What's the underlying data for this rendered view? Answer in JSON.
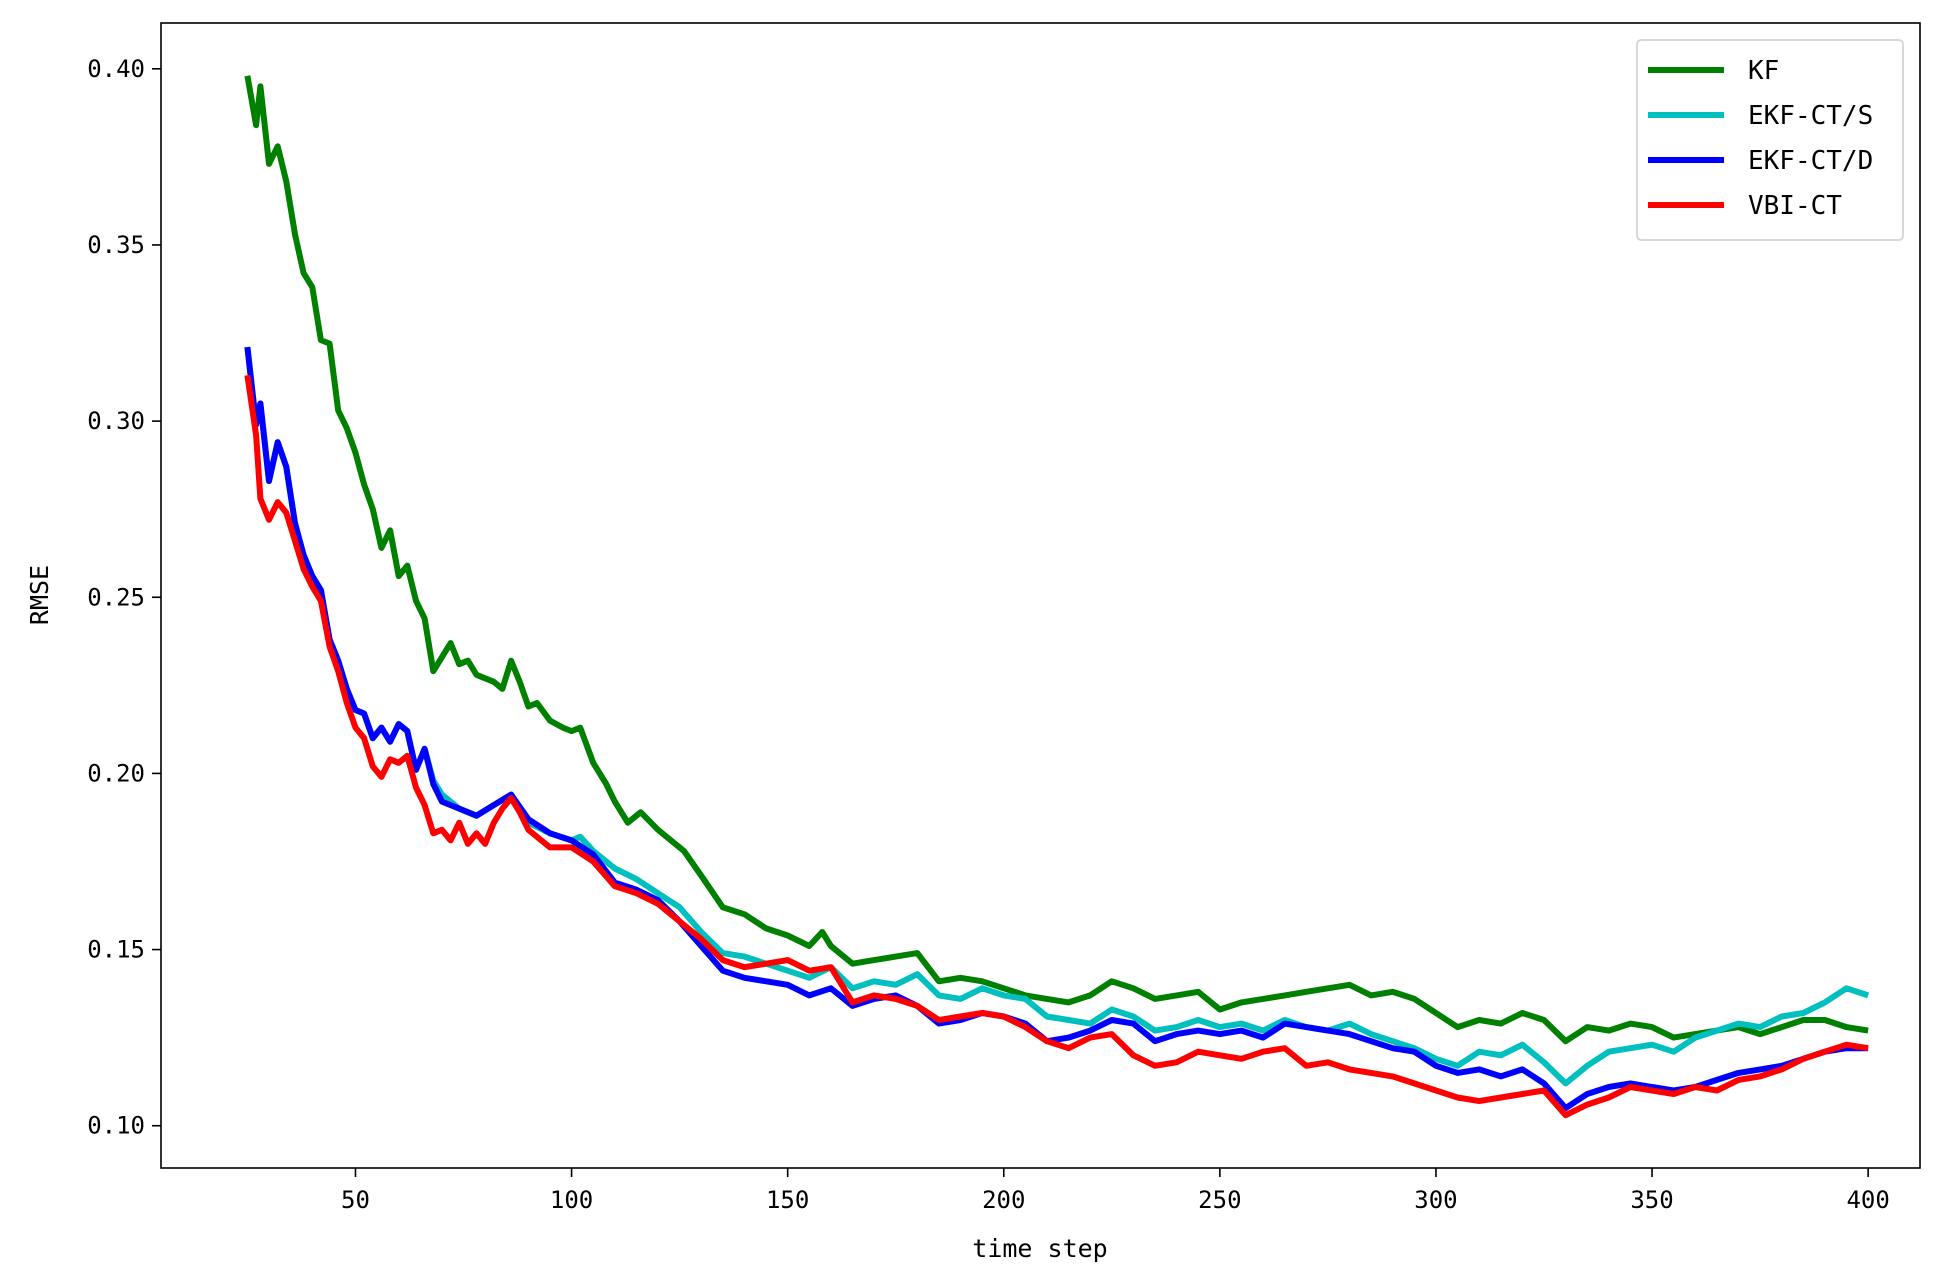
{
  "chart_data": {
    "type": "line",
    "title": "",
    "xlabel": "time step",
    "ylabel": "RMSE",
    "xlim": [
      5,
      412
    ],
    "ylim": [
      0.088,
      0.413
    ],
    "xticks": [
      50,
      100,
      150,
      200,
      250,
      300,
      350,
      400
    ],
    "xtick_labels": [
      "50",
      "100",
      "150",
      "200",
      "250",
      "300",
      "350",
      "400"
    ],
    "yticks": [
      0.1,
      0.15,
      0.2,
      0.25,
      0.3,
      0.35,
      0.4
    ],
    "ytick_labels": [
      "0.10",
      "0.15",
      "0.20",
      "0.25",
      "0.30",
      "0.35",
      "0.40"
    ],
    "grid": false,
    "legend_position": "top-right",
    "series": [
      {
        "name": "KF",
        "color": "#008000",
        "x": [
          25,
          27,
          28,
          30,
          32,
          34,
          36,
          38,
          40,
          42,
          44,
          46,
          48,
          50,
          52,
          54,
          56,
          58,
          60,
          62,
          64,
          66,
          68,
          70,
          72,
          74,
          76,
          78,
          80,
          82,
          84,
          86,
          88,
          90,
          92,
          95,
          98,
          100,
          102,
          105,
          108,
          110,
          113,
          116,
          120,
          123,
          126,
          130,
          135,
          140,
          145,
          150,
          155,
          158,
          160,
          165,
          170,
          175,
          180,
          185,
          190,
          195,
          200,
          205,
          210,
          215,
          220,
          225,
          230,
          235,
          240,
          245,
          250,
          255,
          260,
          265,
          270,
          275,
          280,
          285,
          290,
          295,
          300,
          305,
          310,
          315,
          320,
          325,
          330,
          335,
          340,
          345,
          350,
          355,
          360,
          365,
          370,
          375,
          380,
          385,
          390,
          395,
          400
        ],
        "values": [
          0.398,
          0.384,
          0.395,
          0.373,
          0.378,
          0.368,
          0.353,
          0.342,
          0.338,
          0.323,
          0.322,
          0.303,
          0.298,
          0.291,
          0.282,
          0.275,
          0.264,
          0.269,
          0.256,
          0.259,
          0.249,
          0.244,
          0.229,
          0.233,
          0.237,
          0.231,
          0.232,
          0.228,
          0.227,
          0.226,
          0.224,
          0.232,
          0.226,
          0.219,
          0.22,
          0.215,
          0.213,
          0.212,
          0.213,
          0.203,
          0.197,
          0.192,
          0.186,
          0.189,
          0.184,
          0.181,
          0.178,
          0.171,
          0.162,
          0.16,
          0.156,
          0.154,
          0.151,
          0.155,
          0.151,
          0.146,
          0.147,
          0.148,
          0.149,
          0.141,
          0.142,
          0.141,
          0.139,
          0.137,
          0.136,
          0.135,
          0.137,
          0.141,
          0.139,
          0.136,
          0.137,
          0.138,
          0.133,
          0.135,
          0.136,
          0.137,
          0.138,
          0.139,
          0.14,
          0.137,
          0.138,
          0.136,
          0.132,
          0.128,
          0.13,
          0.129,
          0.132,
          0.13,
          0.124,
          0.128,
          0.127,
          0.129,
          0.128,
          0.125,
          0.126,
          0.127,
          0.128,
          0.126,
          0.128,
          0.13,
          0.13,
          0.128,
          0.127
        ]
      },
      {
        "name": "EKF-CT/S",
        "color": "#00bfbf",
        "x": [
          25,
          27,
          28,
          30,
          32,
          34,
          36,
          38,
          40,
          42,
          44,
          46,
          48,
          50,
          52,
          54,
          56,
          58,
          60,
          62,
          64,
          66,
          68,
          70,
          74,
          78,
          82,
          86,
          90,
          95,
          100,
          102,
          105,
          110,
          115,
          120,
          125,
          130,
          135,
          140,
          145,
          150,
          155,
          160,
          165,
          170,
          175,
          180,
          185,
          190,
          195,
          200,
          205,
          210,
          215,
          220,
          225,
          230,
          235,
          240,
          245,
          250,
          255,
          260,
          265,
          270,
          275,
          280,
          285,
          290,
          295,
          300,
          305,
          310,
          315,
          320,
          325,
          330,
          335,
          340,
          345,
          350,
          355,
          360,
          365,
          370,
          375,
          380,
          385,
          390,
          395,
          400
        ],
        "values": [
          0.321,
          0.299,
          0.305,
          0.283,
          0.294,
          0.287,
          0.271,
          0.262,
          0.256,
          0.252,
          0.238,
          0.232,
          0.224,
          0.218,
          0.217,
          0.21,
          0.213,
          0.209,
          0.214,
          0.212,
          0.201,
          0.207,
          0.198,
          0.194,
          0.19,
          0.188,
          0.191,
          0.194,
          0.186,
          0.183,
          0.181,
          0.182,
          0.178,
          0.173,
          0.17,
          0.166,
          0.162,
          0.155,
          0.149,
          0.148,
          0.146,
          0.144,
          0.142,
          0.145,
          0.139,
          0.141,
          0.14,
          0.143,
          0.137,
          0.136,
          0.139,
          0.137,
          0.136,
          0.131,
          0.13,
          0.129,
          0.133,
          0.131,
          0.127,
          0.128,
          0.13,
          0.128,
          0.129,
          0.127,
          0.13,
          0.128,
          0.127,
          0.129,
          0.126,
          0.124,
          0.122,
          0.119,
          0.117,
          0.121,
          0.12,
          0.123,
          0.118,
          0.112,
          0.117,
          0.121,
          0.122,
          0.123,
          0.121,
          0.125,
          0.127,
          0.129,
          0.128,
          0.131,
          0.132,
          0.135,
          0.139,
          0.137
        ]
      },
      {
        "name": "EKF-CT/D",
        "color": "#0000ff",
        "x": [
          25,
          27,
          28,
          30,
          32,
          34,
          36,
          38,
          40,
          42,
          44,
          46,
          48,
          50,
          52,
          54,
          56,
          58,
          60,
          62,
          64,
          66,
          68,
          70,
          74,
          78,
          82,
          86,
          90,
          95,
          100,
          105,
          110,
          115,
          120,
          125,
          130,
          135,
          140,
          145,
          150,
          155,
          160,
          165,
          170,
          175,
          180,
          185,
          190,
          195,
          200,
          205,
          210,
          215,
          220,
          225,
          230,
          235,
          240,
          245,
          250,
          255,
          260,
          265,
          270,
          275,
          280,
          285,
          290,
          295,
          300,
          305,
          310,
          315,
          320,
          325,
          330,
          335,
          340,
          345,
          350,
          355,
          360,
          365,
          370,
          375,
          380,
          385,
          390,
          395,
          400
        ],
        "values": [
          0.321,
          0.299,
          0.305,
          0.283,
          0.294,
          0.287,
          0.271,
          0.262,
          0.256,
          0.252,
          0.238,
          0.232,
          0.224,
          0.218,
          0.217,
          0.21,
          0.213,
          0.209,
          0.214,
          0.212,
          0.201,
          0.207,
          0.197,
          0.192,
          0.19,
          0.188,
          0.191,
          0.194,
          0.187,
          0.183,
          0.181,
          0.177,
          0.169,
          0.167,
          0.164,
          0.158,
          0.151,
          0.144,
          0.142,
          0.141,
          0.14,
          0.137,
          0.139,
          0.134,
          0.136,
          0.137,
          0.134,
          0.129,
          0.13,
          0.132,
          0.131,
          0.129,
          0.124,
          0.125,
          0.127,
          0.13,
          0.129,
          0.124,
          0.126,
          0.127,
          0.126,
          0.127,
          0.125,
          0.129,
          0.128,
          0.127,
          0.126,
          0.124,
          0.122,
          0.121,
          0.117,
          0.115,
          0.116,
          0.114,
          0.116,
          0.112,
          0.105,
          0.109,
          0.111,
          0.112,
          0.111,
          0.11,
          0.111,
          0.113,
          0.115,
          0.116,
          0.117,
          0.119,
          0.121,
          0.122,
          0.122
        ]
      },
      {
        "name": "VBI-CT",
        "color": "#ff0000",
        "x": [
          25,
          27,
          28,
          30,
          32,
          34,
          36,
          38,
          40,
          42,
          44,
          46,
          48,
          50,
          52,
          54,
          56,
          58,
          60,
          62,
          64,
          66,
          68,
          70,
          72,
          74,
          76,
          78,
          80,
          82,
          84,
          86,
          88,
          90,
          95,
          100,
          105,
          110,
          115,
          120,
          125,
          130,
          135,
          140,
          145,
          150,
          155,
          160,
          165,
          170,
          175,
          180,
          185,
          190,
          195,
          200,
          205,
          210,
          215,
          220,
          225,
          230,
          235,
          240,
          245,
          250,
          255,
          260,
          265,
          270,
          275,
          280,
          285,
          290,
          295,
          300,
          305,
          310,
          315,
          320,
          325,
          330,
          335,
          340,
          345,
          350,
          355,
          360,
          365,
          370,
          375,
          380,
          385,
          390,
          395,
          400
        ],
        "values": [
          0.313,
          0.296,
          0.278,
          0.272,
          0.277,
          0.274,
          0.266,
          0.258,
          0.253,
          0.249,
          0.236,
          0.229,
          0.22,
          0.213,
          0.21,
          0.202,
          0.199,
          0.204,
          0.203,
          0.205,
          0.196,
          0.191,
          0.183,
          0.184,
          0.181,
          0.186,
          0.18,
          0.183,
          0.18,
          0.186,
          0.19,
          0.193,
          0.189,
          0.184,
          0.179,
          0.179,
          0.175,
          0.168,
          0.166,
          0.163,
          0.158,
          0.153,
          0.147,
          0.145,
          0.146,
          0.147,
          0.144,
          0.145,
          0.135,
          0.137,
          0.136,
          0.134,
          0.13,
          0.131,
          0.132,
          0.131,
          0.128,
          0.124,
          0.122,
          0.125,
          0.126,
          0.12,
          0.117,
          0.118,
          0.121,
          0.12,
          0.119,
          0.121,
          0.122,
          0.117,
          0.118,
          0.116,
          0.115,
          0.114,
          0.112,
          0.11,
          0.108,
          0.107,
          0.108,
          0.109,
          0.11,
          0.103,
          0.106,
          0.108,
          0.111,
          0.11,
          0.109,
          0.111,
          0.11,
          0.113,
          0.114,
          0.116,
          0.119,
          0.121,
          0.123,
          0.122
        ]
      }
    ]
  }
}
